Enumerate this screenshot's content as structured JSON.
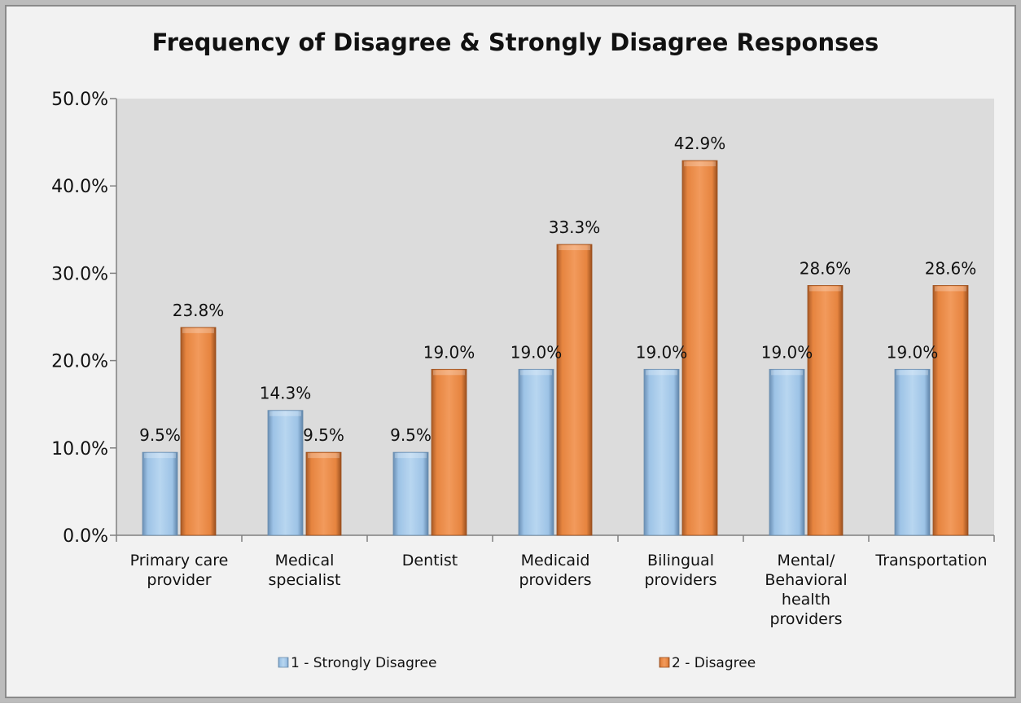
{
  "chart_data": {
    "type": "bar",
    "title": "Frequency of Disagree & Strongly Disagree Responses",
    "xlabel": "",
    "ylabel": "",
    "categories": [
      [
        "Primary care",
        "provider"
      ],
      [
        "Medical",
        "specialist"
      ],
      [
        "Dentist"
      ],
      [
        "Medicaid",
        "providers"
      ],
      [
        "Bilingual",
        "providers"
      ],
      [
        "Mental/",
        "Behavioral",
        "health",
        "providers"
      ],
      [
        "Transportation"
      ]
    ],
    "series": [
      {
        "name": "1 - Strongly Disagree",
        "values": [
          9.5,
          14.3,
          9.5,
          19.0,
          19.0,
          19.0,
          19.0
        ],
        "labels": [
          "9.5%",
          "14.3%",
          "9.5%",
          "19.0%",
          "19.0%",
          "19.0%",
          "19.0%"
        ],
        "color": "#9dc3e6"
      },
      {
        "name": "2 - Disagree",
        "values": [
          23.8,
          9.5,
          19.0,
          33.3,
          42.9,
          28.6,
          28.6
        ],
        "labels": [
          "23.8%",
          "9.5%",
          "19.0%",
          "33.3%",
          "42.9%",
          "28.6%",
          "28.6%"
        ],
        "color": "#ec8b4e"
      }
    ],
    "ylim": [
      0,
      50
    ],
    "yticks": [
      {
        "value": 0,
        "label": "0.0%"
      },
      {
        "value": 10,
        "label": "10.0%"
      },
      {
        "value": 20,
        "label": "20.0%"
      },
      {
        "value": 30,
        "label": "30.0%"
      },
      {
        "value": 40,
        "label": "40.0%"
      },
      {
        "value": 50,
        "label": "50.0%"
      }
    ],
    "grid": false,
    "legend_position": "bottom",
    "plot_background": "#dcdcdc",
    "chart_background": "#f2f2f2"
  }
}
